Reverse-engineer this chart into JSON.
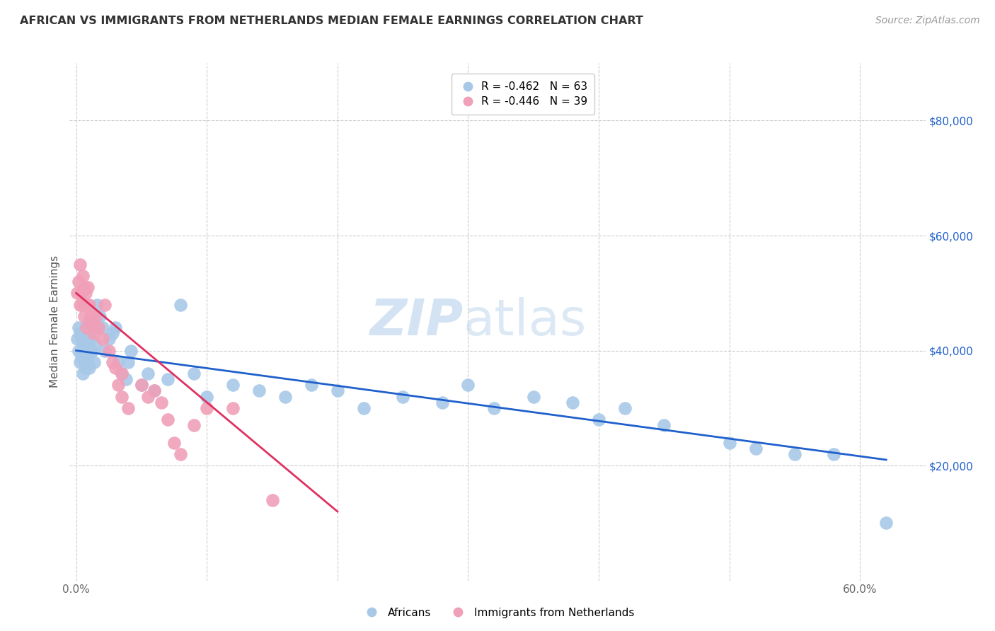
{
  "title": "AFRICAN VS IMMIGRANTS FROM NETHERLANDS MEDIAN FEMALE EARNINGS CORRELATION CHART",
  "source": "Source: ZipAtlas.com",
  "ylabel": "Median Female Earnings",
  "xlim": [
    -0.005,
    0.65
  ],
  "ylim": [
    0,
    90000
  ],
  "yticks": [
    20000,
    40000,
    60000,
    80000
  ],
  "xticks": [
    0.0,
    0.1,
    0.2,
    0.3,
    0.4,
    0.5,
    0.6
  ],
  "xtick_labels": [
    "0.0%",
    "",
    "",
    "",
    "",
    "",
    "60.0%"
  ],
  "ytick_labels_right": [
    "$20,000",
    "$40,000",
    "$60,000",
    "$80,000"
  ],
  "background_color": "#ffffff",
  "grid_color": "#cccccc",
  "blue_color": "#a8c8e8",
  "pink_color": "#f0a0b8",
  "blue_line_color": "#2060cc",
  "pink_line_color": "#e03060",
  "legend_blue_label": "R = -0.462   N = 63",
  "legend_pink_label": "R = -0.446   N = 39",
  "africans_label": "Africans",
  "netherlands_label": "Immigrants from Netherlands",
  "watermark_zip": "ZIP",
  "watermark_atlas": "atlas",
  "africans_x": [
    0.001,
    0.002,
    0.002,
    0.003,
    0.003,
    0.004,
    0.004,
    0.005,
    0.005,
    0.006,
    0.006,
    0.007,
    0.007,
    0.008,
    0.008,
    0.009,
    0.009,
    0.01,
    0.01,
    0.011,
    0.012,
    0.013,
    0.014,
    0.015,
    0.016,
    0.018,
    0.02,
    0.022,
    0.025,
    0.028,
    0.03,
    0.032,
    0.035,
    0.038,
    0.04,
    0.042,
    0.05,
    0.055,
    0.06,
    0.07,
    0.08,
    0.09,
    0.1,
    0.12,
    0.14,
    0.16,
    0.18,
    0.2,
    0.22,
    0.25,
    0.28,
    0.3,
    0.32,
    0.35,
    0.38,
    0.4,
    0.42,
    0.45,
    0.5,
    0.52,
    0.55,
    0.58,
    0.62
  ],
  "africans_y": [
    42000,
    40000,
    44000,
    43000,
    38000,
    42000,
    39000,
    41000,
    36000,
    40000,
    38000,
    44000,
    37000,
    41000,
    39000,
    43000,
    38000,
    45000,
    37000,
    42000,
    40000,
    44000,
    38000,
    41000,
    48000,
    46000,
    44000,
    40000,
    42000,
    43000,
    44000,
    38000,
    36000,
    35000,
    38000,
    40000,
    34000,
    36000,
    33000,
    35000,
    48000,
    36000,
    32000,
    34000,
    33000,
    32000,
    34000,
    33000,
    30000,
    32000,
    31000,
    34000,
    30000,
    32000,
    31000,
    28000,
    30000,
    27000,
    24000,
    23000,
    22000,
    22000,
    10000
  ],
  "netherlands_x": [
    0.001,
    0.002,
    0.003,
    0.003,
    0.004,
    0.005,
    0.005,
    0.006,
    0.006,
    0.007,
    0.008,
    0.008,
    0.009,
    0.01,
    0.011,
    0.012,
    0.013,
    0.015,
    0.017,
    0.02,
    0.022,
    0.025,
    0.028,
    0.03,
    0.032,
    0.035,
    0.035,
    0.04,
    0.05,
    0.055,
    0.06,
    0.065,
    0.07,
    0.075,
    0.08,
    0.09,
    0.1,
    0.12,
    0.15
  ],
  "netherlands_y": [
    50000,
    52000,
    48000,
    55000,
    50000,
    48000,
    53000,
    51000,
    46000,
    50000,
    48000,
    44000,
    51000,
    48000,
    46000,
    45000,
    43000,
    46000,
    44000,
    42000,
    48000,
    40000,
    38000,
    37000,
    34000,
    36000,
    32000,
    30000,
    34000,
    32000,
    33000,
    31000,
    28000,
    24000,
    22000,
    27000,
    30000,
    30000,
    14000
  ],
  "africans_line_x": [
    0.0,
    0.62
  ],
  "africans_line_y": [
    40000,
    21000
  ],
  "netherlands_line_x": [
    0.0,
    0.2
  ],
  "netherlands_line_y": [
    50000,
    12000
  ]
}
